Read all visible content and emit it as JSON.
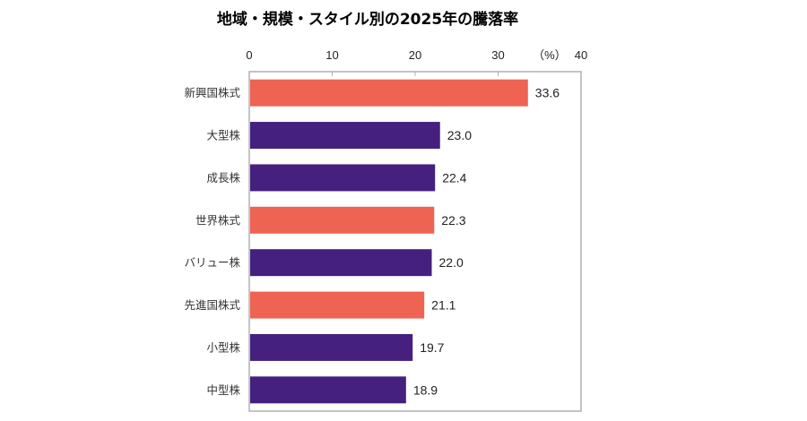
{
  "chart_data": {
    "type": "bar",
    "orientation": "horizontal",
    "title": "地域・規模・スタイル別の2025年の騰落率",
    "unit_label": "（%）",
    "categories": [
      "新興国株式",
      "大型株",
      "成長株",
      "世界株式",
      "バリュー株",
      "先進国株式",
      "小型株",
      "中型株"
    ],
    "values": [
      33.6,
      23.0,
      22.4,
      22.3,
      22.0,
      21.1,
      19.7,
      18.9
    ],
    "value_labels": [
      "33.6",
      "23.0",
      "22.4",
      "22.3",
      "22.0",
      "21.1",
      "19.7",
      "18.9"
    ],
    "bar_colors": [
      "#EE6352",
      "#45207E",
      "#45207E",
      "#EE6352",
      "#45207E",
      "#EE6352",
      "#45207E",
      "#45207E"
    ],
    "xlim": [
      0,
      40
    ],
    "xticks": [
      "0",
      "10",
      "20",
      "30",
      "40"
    ],
    "axis_position": "top",
    "grid": false,
    "title_color": "#EE5A4A"
  }
}
